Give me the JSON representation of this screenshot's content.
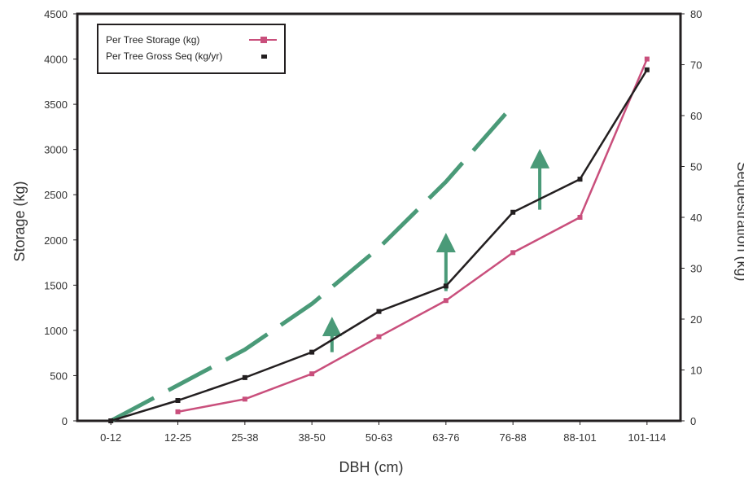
{
  "chart_data": {
    "type": "line",
    "categories": [
      "0-12",
      "12-25",
      "25-38",
      "38-50",
      "50-63",
      "63-76",
      "76-88",
      "88-101",
      "101-114"
    ],
    "xlabel": "DBH (cm)",
    "ylabel": "Storage (kg)",
    "y2label": "Sequestration (kg)",
    "ylim": [
      0,
      4500
    ],
    "y2lim": [
      0,
      80
    ],
    "yticks": [
      "0",
      "500",
      "1000",
      "1500",
      "2000",
      "2500",
      "3000",
      "3500",
      "4000",
      "4500"
    ],
    "y2ticks": [
      "0",
      "10",
      "20",
      "30",
      "40",
      "50",
      "60",
      "70",
      "80"
    ],
    "grid": false,
    "legend_position": "top-left",
    "series": [
      {
        "name": "Per Tree Storage (kg)",
        "axis": "left",
        "color": "#c94f7c",
        "marker": "square",
        "values": [
          null,
          100,
          240,
          520,
          930,
          1330,
          1860,
          2250,
          4000
        ]
      },
      {
        "name": "Per Tree Gross Seq (kg/yr)",
        "axis": "right",
        "color": "#231f20",
        "marker": "square",
        "values": [
          0,
          4,
          8.5,
          13.5,
          21.5,
          26.5,
          41,
          47.5,
          69
        ]
      }
    ],
    "annotations": {
      "dashed_trend_color": "#4a9a78",
      "dashed_trend": [
        [
          0,
          0
        ],
        [
          1,
          7
        ],
        [
          2,
          14
        ],
        [
          3,
          23
        ],
        [
          4,
          34
        ],
        [
          5,
          47
        ],
        [
          6,
          62
        ]
      ],
      "arrows": [
        {
          "category_index": 3.3,
          "from": 13.5,
          "to": 19.5
        },
        {
          "category_index": 5.0,
          "from": 25.5,
          "to": 36
        },
        {
          "category_index": 6.4,
          "from": 41.5,
          "to": 52.5
        }
      ]
    }
  }
}
